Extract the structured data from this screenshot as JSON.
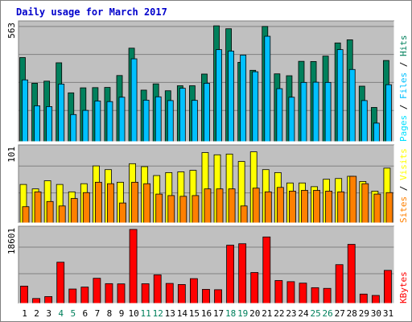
{
  "chart_data": {
    "type": "bar",
    "title": "Daily usage for March 2017",
    "categories": [
      "1",
      "2",
      "3",
      "4",
      "5",
      "6",
      "7",
      "8",
      "9",
      "10",
      "11",
      "12",
      "13",
      "14",
      "15",
      "16",
      "17",
      "18",
      "19",
      "20",
      "21",
      "22",
      "23",
      "24",
      "25",
      "26",
      "27",
      "28",
      "29",
      "30",
      "31"
    ],
    "weekend_days": [
      "4",
      "5",
      "11",
      "12",
      "18",
      "19",
      "25",
      "26"
    ],
    "colors": {
      "background": "#c0c0c0",
      "title": "#0000cc",
      "hits": "#00805c",
      "files": "#00c0ff",
      "pages": "#00e0ff",
      "visits": "#ffff00",
      "sites": "#ff8000",
      "kbytes": "#ff0000",
      "weekend_label": "#00805c",
      "weekday_label": "#000000",
      "grid": "#808080"
    },
    "panels": [
      {
        "id": "hits-files-pages",
        "max_label": "563",
        "ylim": [
          0,
          563
        ],
        "legend": [
          {
            "text": "Pages",
            "color": "#00e0ff"
          },
          {
            "text": "Files",
            "color": "#00c0ff"
          },
          {
            "text": "Hits",
            "color": "#00805c"
          }
        ],
        "series": [
          {
            "name": "Hits",
            "color": "#00805c",
            "values": [
              403,
              280,
              290,
              378,
              234,
              258,
              259,
              260,
              317,
              448,
              247,
              277,
              244,
              268,
              268,
              324,
              555,
              541,
              380,
              342,
              552,
              325,
              316,
              385,
              384,
              410,
              473,
              488,
              266,
              164,
              389
            ]
          },
          {
            "name": "Files",
            "color": "#00c0ff",
            "values": [
              296,
              172,
              168,
              276,
              130,
              150,
              195,
              192,
              213,
              397,
              199,
              215,
              197,
              256,
              198,
              280,
              441,
              434,
              415,
              335,
              505,
              254,
              213,
              284,
              285,
              284,
              441,
              346,
              197,
              89,
              273
            ]
          },
          {
            "name": "Pages",
            "color": "#00e0ff",
            "values": [
              0,
              0,
              0,
              0,
              0,
              0,
              0,
              0,
              0,
              0,
              0,
              0,
              0,
              0,
              0,
              0,
              0,
              0,
              0,
              0,
              0,
              0,
              0,
              0,
              0,
              0,
              0,
              0,
              0,
              0,
              0
            ]
          }
        ]
      },
      {
        "id": "visits-sites",
        "max_label": "101",
        "ylim": [
          0,
          101
        ],
        "legend": [
          {
            "text": "Sites",
            "color": "#ff8000"
          },
          {
            "text": "Visits",
            "color": "#ffff00"
          }
        ],
        "series": [
          {
            "name": "Visits",
            "color": "#ffff00",
            "values": [
              52,
              46,
              57,
              52,
              42,
              53,
              77,
              72,
              55,
              80,
              76,
              64,
              68,
              69,
              71,
              95,
              92,
              93,
              83,
              96,
              72,
              68,
              54,
              54,
              49,
              59,
              60,
              63,
              56,
              43,
              74
            ]
          },
          {
            "name": "Sites",
            "color": "#ff8000",
            "values": [
              22,
              42,
              29,
              23,
              33,
              41,
              55,
              53,
              27,
              55,
              53,
              39,
              37,
              36,
              37,
              46,
              46,
              46,
              23,
              47,
              42,
              48,
              43,
              44,
              44,
              43,
              42,
              63,
              53,
              39,
              41
            ]
          }
        ]
      },
      {
        "id": "kbytes",
        "max_label": "18601",
        "ylim": [
          0,
          18601
        ],
        "legend": [
          {
            "text": "KBytes",
            "color": "#ff0000"
          }
        ],
        "series": [
          {
            "name": "KBytes",
            "color": "#ff0000",
            "values": [
              4366,
              1253,
              1736,
              10371,
              3633,
              4120,
              6332,
              4984,
              4924,
              18601,
              4961,
              7198,
              5042,
              4767,
              6246,
              3545,
              3461,
              14645,
              15011,
              7781,
              16713,
              5766,
              5485,
              5115,
              3971,
              3795,
              9756,
              14856,
              2366,
              2020,
              8317
            ]
          }
        ]
      }
    ]
  }
}
